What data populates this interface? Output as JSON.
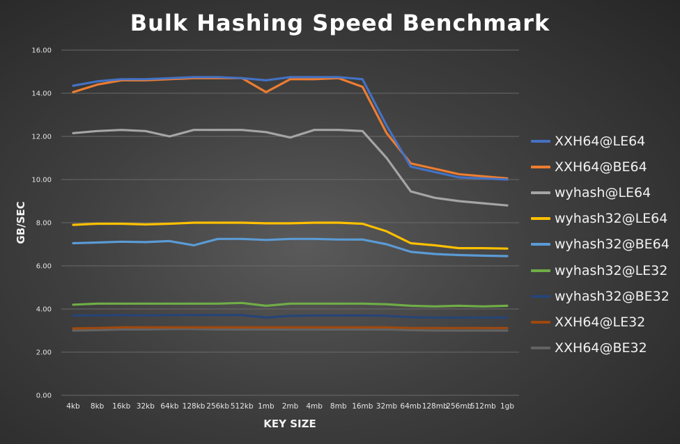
{
  "chart_data": {
    "type": "line",
    "title": "Bulk Hashing Speed Benchmark",
    "xlabel": "KEY SIZE",
    "ylabel": "GB/SEC",
    "ylim": [
      0,
      16
    ],
    "yticks": [
      "0.00",
      "2.00",
      "4.00",
      "6.00",
      "8.00",
      "10.00",
      "12.00",
      "14.00",
      "16.00"
    ],
    "grid": true,
    "legend_position": "right",
    "categories": [
      "4kb",
      "8kb",
      "16kb",
      "32kb",
      "64kb",
      "128kb",
      "256kb",
      "512kb",
      "1mb",
      "2mb",
      "4mb",
      "8mb",
      "16mb",
      "32mb",
      "64mb",
      "128mb",
      "256mb",
      "512mb",
      "1gb"
    ],
    "series": [
      {
        "name": "XXH64@LE64",
        "color": "#4472c4",
        "values": [
          14.35,
          14.55,
          14.65,
          14.65,
          14.7,
          14.75,
          14.75,
          14.7,
          14.6,
          14.75,
          14.75,
          14.75,
          14.65,
          12.5,
          10.6,
          10.35,
          10.1,
          10.05,
          10.0
        ]
      },
      {
        "name": "XXH64@BE64",
        "color": "#ed7d31",
        "values": [
          14.05,
          14.4,
          14.6,
          14.6,
          14.65,
          14.7,
          14.7,
          14.7,
          14.05,
          14.65,
          14.65,
          14.7,
          14.3,
          12.15,
          10.75,
          10.5,
          10.25,
          10.15,
          10.05
        ]
      },
      {
        "name": "wyhash@LE64",
        "color": "#a5a5a5",
        "values": [
          12.15,
          12.25,
          12.3,
          12.25,
          12.0,
          12.3,
          12.3,
          12.3,
          12.2,
          11.95,
          12.3,
          12.3,
          12.25,
          11.0,
          9.45,
          9.15,
          9.0,
          8.9,
          8.8
        ]
      },
      {
        "name": "wyhash32@LE64",
        "color": "#ffc000",
        "values": [
          7.9,
          7.95,
          7.95,
          7.92,
          7.95,
          8.0,
          8.0,
          8.0,
          7.97,
          7.97,
          8.0,
          8.0,
          7.95,
          7.6,
          7.05,
          6.95,
          6.82,
          6.82,
          6.8
        ]
      },
      {
        "name": "wyhash32@BE64",
        "color": "#5b9bd5",
        "values": [
          7.05,
          7.08,
          7.12,
          7.1,
          7.15,
          6.95,
          7.25,
          7.25,
          7.2,
          7.25,
          7.25,
          7.22,
          7.22,
          7.0,
          6.65,
          6.55,
          6.5,
          6.47,
          6.45
        ]
      },
      {
        "name": "wyhash32@LE32",
        "color": "#70ad47",
        "values": [
          4.2,
          4.25,
          4.25,
          4.25,
          4.25,
          4.25,
          4.25,
          4.28,
          4.15,
          4.25,
          4.25,
          4.25,
          4.25,
          4.22,
          4.15,
          4.12,
          4.15,
          4.12,
          4.15
        ]
      },
      {
        "name": "wyhash32@BE32",
        "color": "#264478",
        "values": [
          3.7,
          3.7,
          3.72,
          3.7,
          3.72,
          3.72,
          3.72,
          3.72,
          3.6,
          3.68,
          3.7,
          3.7,
          3.7,
          3.68,
          3.62,
          3.6,
          3.6,
          3.6,
          3.6
        ]
      },
      {
        "name": "XXH64@LE32",
        "color": "#9e480e",
        "values": [
          3.1,
          3.12,
          3.15,
          3.15,
          3.15,
          3.15,
          3.15,
          3.15,
          3.15,
          3.15,
          3.15,
          3.15,
          3.15,
          3.15,
          3.12,
          3.12,
          3.12,
          3.12,
          3.12
        ]
      },
      {
        "name": "XXH64@BE32",
        "color": "#636363",
        "values": [
          3.0,
          3.02,
          3.05,
          3.05,
          3.07,
          3.07,
          3.05,
          3.05,
          3.05,
          3.05,
          3.05,
          3.05,
          3.05,
          3.05,
          3.02,
          3.0,
          3.0,
          3.0,
          3.0
        ]
      }
    ]
  }
}
